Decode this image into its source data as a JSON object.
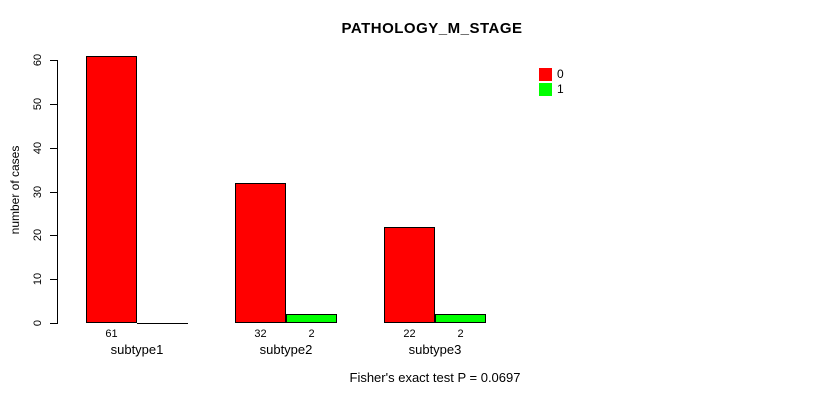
{
  "title": "PATHOLOGY_M_STAGE",
  "chart_data": {
    "type": "bar",
    "title": "PATHOLOGY_M_STAGE",
    "xlabel": "",
    "ylabel": "number of cases",
    "ylim": [
      0,
      60
    ],
    "yticks": [
      0,
      10,
      20,
      30,
      40,
      50,
      60
    ],
    "grid": false,
    "categories": [
      "subtype1",
      "subtype2",
      "subtype3"
    ],
    "series": [
      {
        "name": "0",
        "color": "#FF0000",
        "values": [
          61,
          32,
          22
        ]
      },
      {
        "name": "1",
        "color": "#00FF00",
        "values": [
          0,
          2,
          2
        ]
      }
    ],
    "legend": {
      "position": "top-right",
      "entries": [
        {
          "label": "0",
          "color": "#FF0000"
        },
        {
          "label": "1",
          "color": "#00FF00"
        }
      ]
    },
    "annotation": "Fisher's exact test P = 0.0697"
  }
}
